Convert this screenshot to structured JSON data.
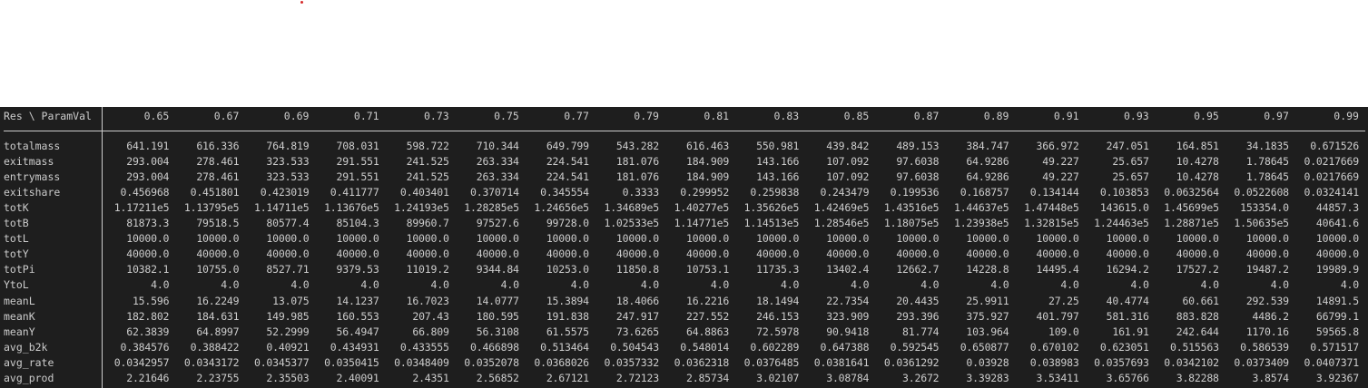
{
  "table": {
    "corner": "Res \\ ParamVal",
    "columns": [
      "0.65",
      "0.67",
      "0.69",
      "0.71",
      "0.73",
      "0.75",
      "0.77",
      "0.79",
      "0.81",
      "0.83",
      "0.85",
      "0.87",
      "0.89",
      "0.91",
      "0.93",
      "0.95",
      "0.97",
      "0.99"
    ],
    "rows": [
      {
        "label": "totalmass",
        "values": [
          "641.191",
          "616.336",
          "764.819",
          "708.031",
          "598.722",
          "710.344",
          "649.799",
          "543.282",
          "616.463",
          "550.981",
          "439.842",
          "489.153",
          "384.747",
          "366.972",
          "247.051",
          "164.851",
          "34.1835",
          "0.671526"
        ]
      },
      {
        "label": "exitmass",
        "values": [
          "293.004",
          "278.461",
          "323.533",
          "291.551",
          "241.525",
          "263.334",
          "224.541",
          "181.076",
          "184.909",
          "143.166",
          "107.092",
          "97.6038",
          "64.9286",
          "49.227",
          "25.657",
          "10.4278",
          "1.78645",
          "0.0217669"
        ]
      },
      {
        "label": "entrymass",
        "values": [
          "293.004",
          "278.461",
          "323.533",
          "291.551",
          "241.525",
          "263.334",
          "224.541",
          "181.076",
          "184.909",
          "143.166",
          "107.092",
          "97.6038",
          "64.9286",
          "49.227",
          "25.657",
          "10.4278",
          "1.78645",
          "0.0217669"
        ]
      },
      {
        "label": "exitshare",
        "values": [
          "0.456968",
          "0.451801",
          "0.423019",
          "0.411777",
          "0.403401",
          "0.370714",
          "0.345554",
          "0.3333",
          "0.299952",
          "0.259838",
          "0.243479",
          "0.199536",
          "0.168757",
          "0.134144",
          "0.103853",
          "0.0632564",
          "0.0522608",
          "0.0324141"
        ]
      },
      {
        "label": "totK",
        "values": [
          "1.17211e5",
          "1.13795e5",
          "1.14711e5",
          "1.13676e5",
          "1.24193e5",
          "1.28285e5",
          "1.24656e5",
          "1.34689e5",
          "1.40277e5",
          "1.35626e5",
          "1.42469e5",
          "1.43516e5",
          "1.44637e5",
          "1.47448e5",
          "143615.0",
          "1.45699e5",
          "153354.0",
          "44857.3"
        ]
      },
      {
        "label": "totB",
        "values": [
          "81873.3",
          "79518.5",
          "80577.4",
          "85104.3",
          "89960.7",
          "97527.6",
          "99728.0",
          "1.02533e5",
          "1.14771e5",
          "1.14513e5",
          "1.28546e5",
          "1.18075e5",
          "1.23938e5",
          "1.32815e5",
          "1.24463e5",
          "1.28871e5",
          "1.50635e5",
          "40641.6"
        ]
      },
      {
        "label": "totL",
        "values": [
          "10000.0",
          "10000.0",
          "10000.0",
          "10000.0",
          "10000.0",
          "10000.0",
          "10000.0",
          "10000.0",
          "10000.0",
          "10000.0",
          "10000.0",
          "10000.0",
          "10000.0",
          "10000.0",
          "10000.0",
          "10000.0",
          "10000.0",
          "10000.0"
        ]
      },
      {
        "label": "totY",
        "values": [
          "40000.0",
          "40000.0",
          "40000.0",
          "40000.0",
          "40000.0",
          "40000.0",
          "40000.0",
          "40000.0",
          "40000.0",
          "40000.0",
          "40000.0",
          "40000.0",
          "40000.0",
          "40000.0",
          "40000.0",
          "40000.0",
          "40000.0",
          "40000.0"
        ]
      },
      {
        "label": "totPi",
        "values": [
          "10382.1",
          "10755.0",
          "8527.71",
          "9379.53",
          "11019.2",
          "9344.84",
          "10253.0",
          "11850.8",
          "10753.1",
          "11735.3",
          "13402.4",
          "12662.7",
          "14228.8",
          "14495.4",
          "16294.2",
          "17527.2",
          "19487.2",
          "19989.9"
        ]
      },
      {
        "label": "YtoL",
        "values": [
          "4.0",
          "4.0",
          "4.0",
          "4.0",
          "4.0",
          "4.0",
          "4.0",
          "4.0",
          "4.0",
          "4.0",
          "4.0",
          "4.0",
          "4.0",
          "4.0",
          "4.0",
          "4.0",
          "4.0",
          "4.0"
        ]
      },
      {
        "label": "meanL",
        "values": [
          "15.596",
          "16.2249",
          "13.075",
          "14.1237",
          "16.7023",
          "14.0777",
          "15.3894",
          "18.4066",
          "16.2216",
          "18.1494",
          "22.7354",
          "20.4435",
          "25.9911",
          "27.25",
          "40.4774",
          "60.661",
          "292.539",
          "14891.5"
        ]
      },
      {
        "label": "meanK",
        "values": [
          "182.802",
          "184.631",
          "149.985",
          "160.553",
          "207.43",
          "180.595",
          "191.838",
          "247.917",
          "227.552",
          "246.153",
          "323.909",
          "293.396",
          "375.927",
          "401.797",
          "581.316",
          "883.828",
          "4486.2",
          "66799.1"
        ]
      },
      {
        "label": "meanY",
        "values": [
          "62.3839",
          "64.8997",
          "52.2999",
          "56.4947",
          "66.809",
          "56.3108",
          "61.5575",
          "73.6265",
          "64.8863",
          "72.5978",
          "90.9418",
          "81.774",
          "103.964",
          "109.0",
          "161.91",
          "242.644",
          "1170.16",
          "59565.8"
        ]
      },
      {
        "label": "avg_b2k",
        "values": [
          "0.384576",
          "0.388422",
          "0.40921",
          "0.434931",
          "0.433555",
          "0.466898",
          "0.513464",
          "0.504543",
          "0.548014",
          "0.602289",
          "0.647388",
          "0.592545",
          "0.650877",
          "0.670102",
          "0.623051",
          "0.515563",
          "0.586539",
          "0.571517"
        ]
      },
      {
        "label": "avg_rate",
        "values": [
          "0.0342957",
          "0.0343172",
          "0.0345377",
          "0.0350415",
          "0.0348409",
          "0.0352078",
          "0.0368026",
          "0.0357332",
          "0.0362318",
          "0.0376485",
          "0.0381641",
          "0.0361292",
          "0.03928",
          "0.038983",
          "0.0357693",
          "0.0342102",
          "0.0373409",
          "0.0407371"
        ]
      },
      {
        "label": "avg_prod",
        "values": [
          "2.21646",
          "2.23755",
          "2.35503",
          "2.40091",
          "2.4351",
          "2.56852",
          "2.67121",
          "2.72123",
          "2.85734",
          "3.02107",
          "3.08784",
          "3.2672",
          "3.39283",
          "3.53411",
          "3.65766",
          "3.82288",
          "3.8574",
          "3.92367"
        ]
      }
    ]
  }
}
